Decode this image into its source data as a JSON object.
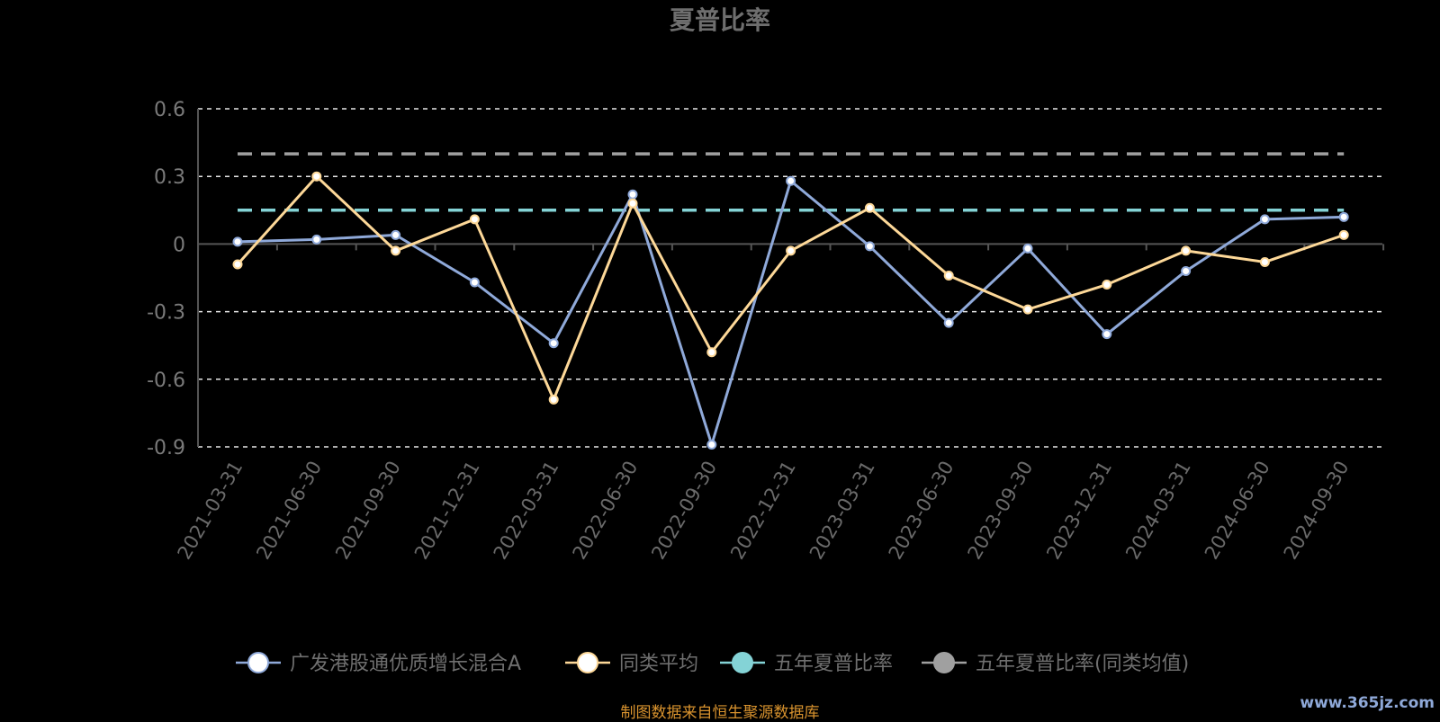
{
  "chart_data": {
    "type": "line",
    "title": "夏普比率",
    "x": [
      "2021-03-31",
      "2021-06-30",
      "2021-09-30",
      "2021-12-31",
      "2022-03-31",
      "2022-06-30",
      "2022-09-30",
      "2022-12-31",
      "2023-03-31",
      "2023-06-30",
      "2023-09-30",
      "2023-12-31",
      "2024-03-31",
      "2024-06-30",
      "2024-09-30"
    ],
    "ylim": [
      -0.9,
      0.6
    ],
    "yticks": [
      "0.6",
      "0.3",
      "0",
      "-0.3",
      "-0.6",
      "-0.9"
    ],
    "ytick_values": [
      0.6,
      0.3,
      0,
      -0.3,
      -0.6,
      -0.9
    ],
    "grid": true,
    "legend_position": "bottom",
    "series": [
      {
        "name": "广发港股通优质增长混合A",
        "color": "#8fa9d9",
        "style": "solid",
        "values": [
          0.01,
          0.02,
          0.04,
          -0.17,
          -0.44,
          0.22,
          -0.89,
          0.28,
          -0.01,
          -0.35,
          -0.02,
          -0.4,
          -0.12,
          0.11,
          0.12
        ]
      },
      {
        "name": "同类平均",
        "color": "#fdd898",
        "style": "solid",
        "values": [
          -0.09,
          0.3,
          -0.03,
          0.11,
          -0.69,
          0.18,
          -0.48,
          -0.03,
          0.16,
          -0.14,
          -0.29,
          -0.18,
          -0.03,
          -0.08,
          0.04
        ]
      },
      {
        "name": "五年夏普比率",
        "color": "#84d3d6",
        "style": "dashed",
        "values": [
          0.15,
          0.15,
          0.15,
          0.15,
          0.15,
          0.15,
          0.15,
          0.15,
          0.15,
          0.15,
          0.15,
          0.15,
          0.15,
          0.15,
          0.15
        ]
      },
      {
        "name": "五年夏普比率(同类均值)",
        "color": "#a0a0a0",
        "style": "dashed",
        "values": [
          0.4,
          0.4,
          0.4,
          0.4,
          0.4,
          0.4,
          0.4,
          0.4,
          0.4,
          0.4,
          0.4,
          0.4,
          0.4,
          0.4,
          0.4
        ]
      }
    ]
  },
  "footer": {
    "source": "制图数据来自恒生聚源数据库",
    "watermark": "www.365jz.com"
  }
}
